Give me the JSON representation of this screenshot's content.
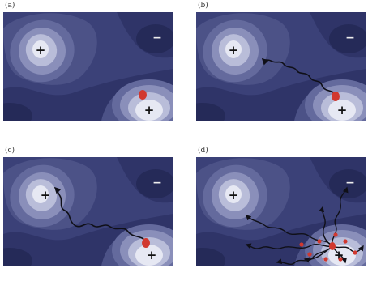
{
  "colors": {
    "level0": "#2f3468",
    "level1": "#3b4178",
    "level2": "#4c5287",
    "level3": "#646a9d",
    "level4": "#8a8fba",
    "level5": "#b9bdd9",
    "level6": "#e6e8f3",
    "particle": "#d1382f",
    "path": "#101018"
  },
  "panels": [
    {
      "label": "(a)",
      "plus_top": "+",
      "plus_bottom": "+",
      "minus": "−"
    },
    {
      "label": "(b)",
      "plus_top": "+",
      "plus_bottom": "+",
      "minus": "−"
    },
    {
      "label": "(c)",
      "plus_top": "+",
      "plus_bottom": "+",
      "minus": "−"
    },
    {
      "label": "(d)",
      "plus_top": "+",
      "plus_bottom": "+",
      "minus": "−"
    }
  ]
}
